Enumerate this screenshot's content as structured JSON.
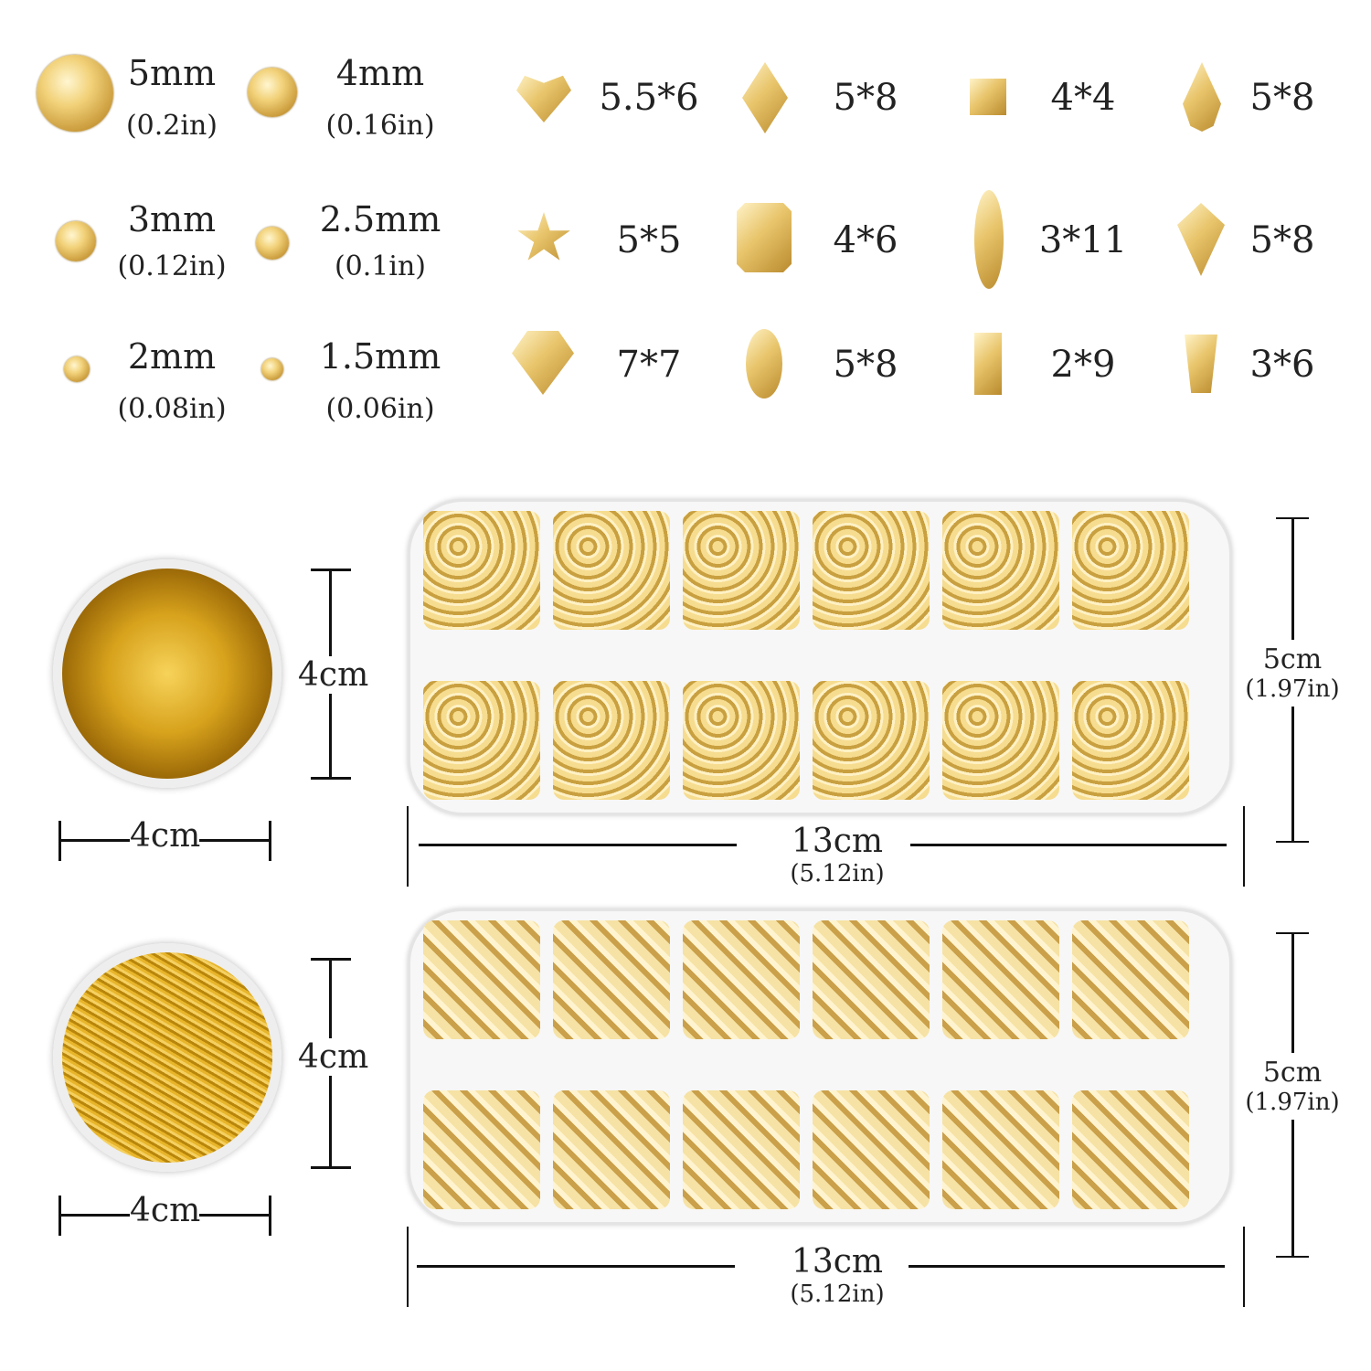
{
  "round_stones": [
    {
      "size": "5mm",
      "inch": "(0.2in)"
    },
    {
      "size": "4mm",
      "inch": "(0.16in)"
    },
    {
      "size": "3mm",
      "inch": "(0.12in)"
    },
    {
      "size": "2.5mm",
      "inch": "(0.1in)"
    },
    {
      "size": "2mm",
      "inch": "(0.08in)"
    },
    {
      "size": "1.5mm",
      "inch": "(0.06in)"
    }
  ],
  "shaped_stones": [
    {
      "shape": "heart",
      "size": "5.5*6"
    },
    {
      "shape": "rhombus",
      "size": "5*8"
    },
    {
      "shape": "square",
      "size": "4*4"
    },
    {
      "shape": "teardrop",
      "size": "5*8"
    },
    {
      "shape": "star",
      "size": "5*5"
    },
    {
      "shape": "octagon-rectangle",
      "size": "4*6"
    },
    {
      "shape": "marquise",
      "size": "3*11"
    },
    {
      "shape": "kite",
      "size": "5*8"
    },
    {
      "shape": "trilliant-heart",
      "size": "7*7"
    },
    {
      "shape": "oval",
      "size": "5*8"
    },
    {
      "shape": "baguette",
      "size": "2*9"
    },
    {
      "shape": "trapezoid",
      "size": "3*6"
    }
  ],
  "jars": [
    {
      "height": "4cm",
      "width": "4cm",
      "content": "gold foil flakes"
    },
    {
      "height": "4cm",
      "width": "4cm",
      "content": "gold foil strips"
    }
  ],
  "trays": [
    {
      "width": "13cm",
      "width_in": "(5.12in)",
      "height": "5cm",
      "height_in": "(1.97in)"
    },
    {
      "width": "13cm",
      "width_in": "(5.12in)",
      "height": "5cm",
      "height_in": "(1.97in)"
    }
  ],
  "colors": {
    "gold": "#e8c46a",
    "tray": "#f7f7f7"
  }
}
